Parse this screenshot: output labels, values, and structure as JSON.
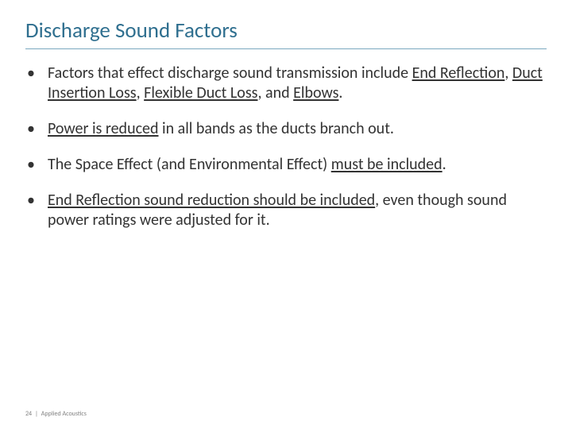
{
  "colors": {
    "title": "#2f6f8f",
    "rule": "#7aa8bf",
    "text": "#333333",
    "footer": "#808080"
  },
  "title": "Discharge Sound Factors",
  "bullets": [
    {
      "pre": "Factors that effect discharge sound transmission include ",
      "u1": "End Reflection",
      "mid1": ", ",
      "u2": "Duct Insertion Loss",
      "mid2": ", ",
      "u3": "Flexible Duct Loss",
      "mid3": ", and ",
      "u4": "Elbows",
      "post": "."
    },
    {
      "u1": "Power is reduced",
      "post": " in all bands as the ducts branch out."
    },
    {
      "pre": "The Space Effect (and Environmental Effect) ",
      "u1": "must be included",
      "post": "."
    },
    {
      "u1": "End Reflection sound reduction should be included",
      "post": ", even though sound power ratings were adjusted for it."
    }
  ],
  "footer": {
    "page": "24",
    "label": "Applied Acoustics"
  }
}
